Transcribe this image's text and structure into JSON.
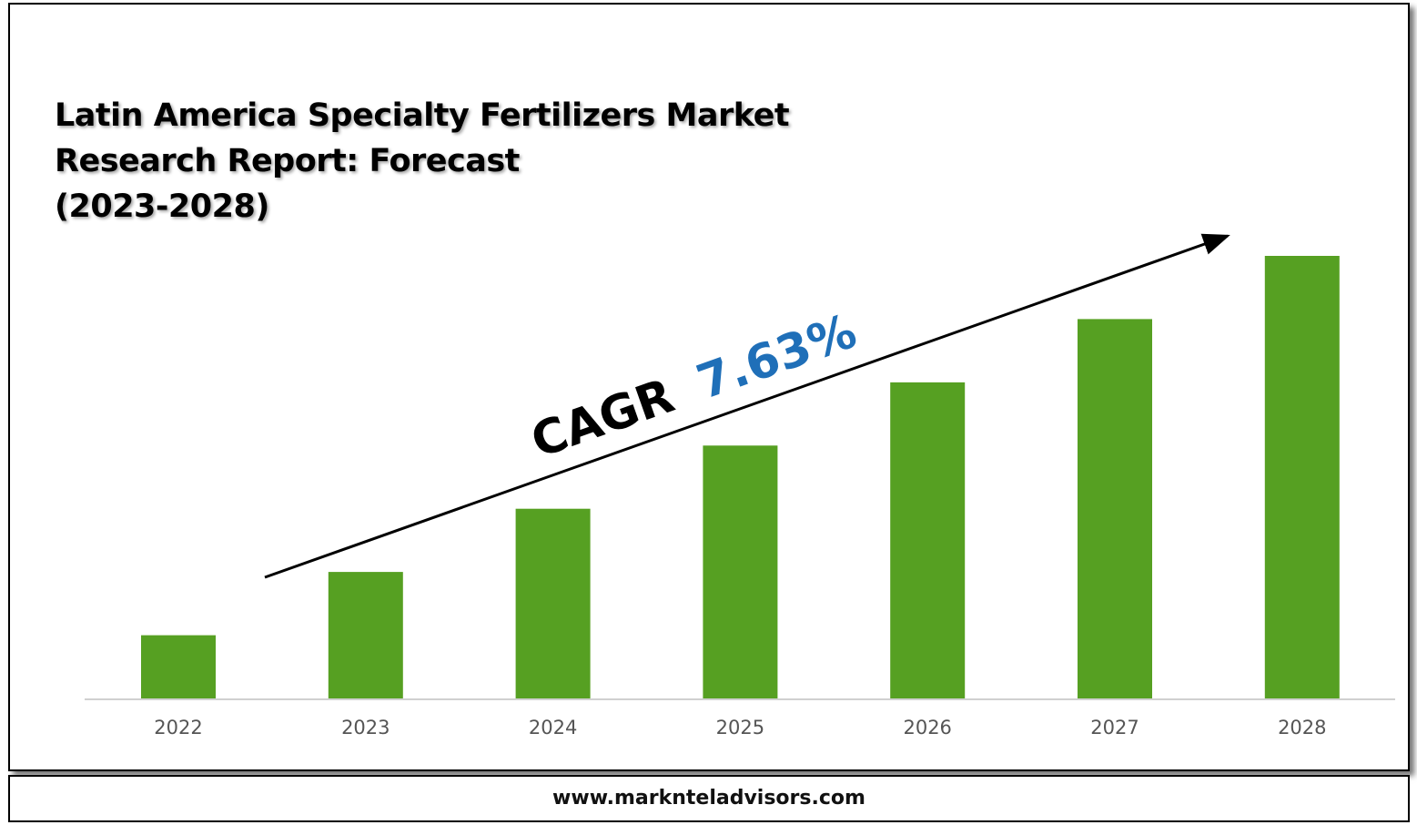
{
  "title_lines": [
    "Latin America Specialty Fertilizers Market",
    "Research Report: Forecast",
    "(2023-2028)"
  ],
  "cagr": {
    "label": "CAGR",
    "value": "7.63%"
  },
  "footer": {
    "url": "www.marknteladvisors.com"
  },
  "colors": {
    "bar": "#56a022",
    "cagr_value": "#1f6fb8",
    "axis": "#d0d0d0",
    "tick_text": "#555555"
  },
  "chart_data": {
    "type": "bar",
    "categories": [
      "2022",
      "2023",
      "2024",
      "2025",
      "2026",
      "2027",
      "2028"
    ],
    "values": [
      1.0,
      2.0,
      3.0,
      4.0,
      5.0,
      6.0,
      7.0
    ],
    "ylim": [
      0,
      7.0
    ],
    "grid": false,
    "legend": "none"
  }
}
